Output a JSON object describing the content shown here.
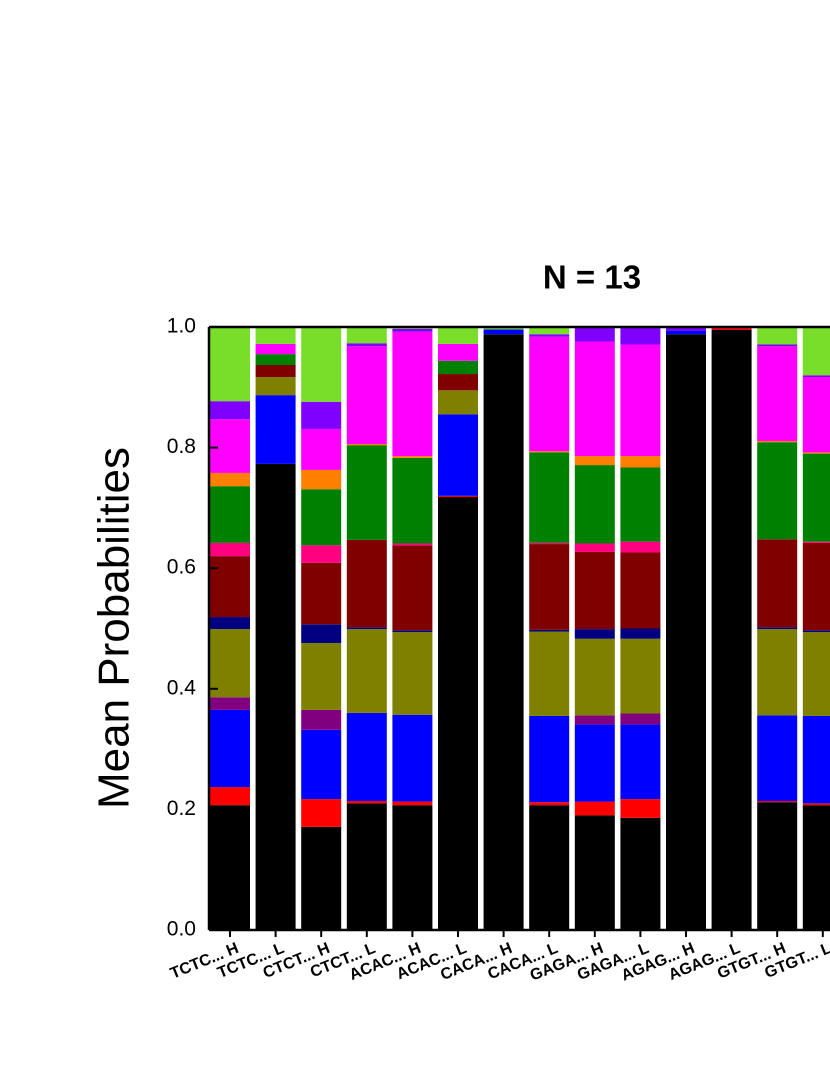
{
  "chart_data": {
    "type": "stacked_bar",
    "title": "N = 13",
    "y_label": "Mean Probabilities",
    "categories": [
      "TCTC... H",
      "TCTC... L",
      "CTCT... H",
      "CTCT... L",
      "ACAC... H",
      "ACAC... L",
      "CACA... H",
      "CACA... L",
      "GAGA... H",
      "GAGA... L",
      "AGAG... H",
      "AGAG... L",
      "GTGT... H",
      "GTGT... L"
    ],
    "series": [
      {
        "color": "#000000",
        "values": [
          0.207,
          0.773,
          0.171,
          0.21,
          0.207,
          0.718,
          0.988,
          0.207,
          0.19,
          0.186,
          0.988,
          0.995,
          0.212,
          0.207
        ]
      },
      {
        "color": "#ff0000",
        "values": [
          0.03,
          0,
          0.046,
          0.004,
          0.006,
          0.002,
          0,
          0.005,
          0.023,
          0.031,
          0,
          0.003,
          0.002,
          0.003
        ]
      },
      {
        "color": "#0000ff",
        "values": [
          0.128,
          0.114,
          0.115,
          0.146,
          0.144,
          0.135,
          0.008,
          0.143,
          0.128,
          0.124,
          0.006,
          0,
          0.142,
          0.145
        ]
      },
      {
        "color": "#800080",
        "values": [
          0.021,
          0,
          0.033,
          0,
          0,
          0,
          0,
          0,
          0.015,
          0.018,
          0,
          0,
          0,
          0
        ]
      },
      {
        "color": "#808000",
        "values": [
          0.113,
          0.03,
          0.111,
          0.139,
          0.137,
          0.04,
          0,
          0.14,
          0.127,
          0.124,
          0,
          0,
          0.143,
          0.139
        ]
      },
      {
        "color": "#000080",
        "values": [
          0.02,
          0,
          0.031,
          0.003,
          0.003,
          0,
          0,
          0.003,
          0.016,
          0.017,
          0,
          0,
          0.003,
          0.003
        ]
      },
      {
        "color": "#800000",
        "values": [
          0.101,
          0.02,
          0.102,
          0.145,
          0.141,
          0.027,
          0,
          0.142,
          0.128,
          0.126,
          0,
          0,
          0.146,
          0.145
        ]
      },
      {
        "color": "#ff0080",
        "values": [
          0.022,
          0,
          0.029,
          0,
          0.003,
          0,
          0,
          0.002,
          0.014,
          0.018,
          0,
          0,
          0,
          0.002
        ]
      },
      {
        "color": "#008000",
        "values": [
          0.094,
          0.018,
          0.093,
          0.157,
          0.142,
          0.022,
          0,
          0.15,
          0.13,
          0.123,
          0,
          0,
          0.161,
          0.146
        ]
      },
      {
        "color": "#ff8000",
        "values": [
          0.022,
          0,
          0.032,
          0.002,
          0.003,
          0,
          0,
          0.002,
          0.015,
          0.019,
          0,
          0,
          0.002,
          0.002
        ]
      },
      {
        "color": "#ff00ff",
        "values": [
          0.089,
          0.017,
          0.068,
          0.162,
          0.206,
          0.028,
          0,
          0.19,
          0.19,
          0.185,
          0,
          0,
          0.157,
          0.125
        ]
      },
      {
        "color": "#8000ff",
        "values": [
          0.03,
          0,
          0.045,
          0.005,
          0.005,
          0,
          0,
          0.004,
          0.024,
          0.029,
          0.006,
          0.002,
          0.003,
          0.003
        ]
      },
      {
        "color": "#79de2a",
        "values": [
          0.123,
          0.028,
          0.124,
          0.027,
          0.003,
          0.028,
          0.004,
          0.012,
          0,
          0,
          0,
          0,
          0.029,
          0.08
        ]
      }
    ],
    "ylim": [
      0,
      1
    ],
    "yticks": [
      {
        "value": 0,
        "label": "0.0"
      },
      0.2,
      0.4,
      0.6,
      0.8,
      {
        "value": 1,
        "label": "1.0"
      }
    ]
  }
}
